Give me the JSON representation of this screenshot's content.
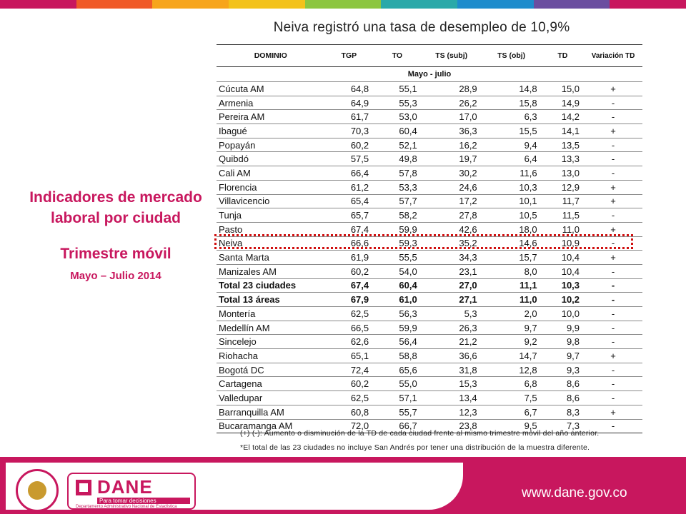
{
  "headline": "Neiva  registró una tasa  de desempleo de 10,9%",
  "side": {
    "title_line1": "Indicadores de mercado",
    "title_line2": "laboral por ciudad",
    "subtitle": "Trimestre móvil",
    "period": "Mayo – Julio 2014"
  },
  "table": {
    "headers": [
      "DOMINIO",
      "TGP",
      "TO",
      "TS (subj)",
      "TS (obj)",
      "TD",
      "Variación TD"
    ],
    "period_label": "Mayo - julio",
    "rows": [
      [
        "Cúcuta AM",
        "64,8",
        "55,1",
        "28,9",
        "14,8",
        "15,0",
        "+"
      ],
      [
        "Armenia",
        "64,9",
        "55,3",
        "26,2",
        "15,8",
        "14,9",
        "-"
      ],
      [
        "Pereira AM",
        "61,7",
        "53,0",
        "17,0",
        "6,3",
        "14,2",
        "-"
      ],
      [
        "Ibagué",
        "70,3",
        "60,4",
        "36,3",
        "15,5",
        "14,1",
        "+"
      ],
      [
        "Popayán",
        "60,2",
        "52,1",
        "16,2",
        "9,4",
        "13,5",
        "-"
      ],
      [
        "Quibdó",
        "57,5",
        "49,8",
        "19,7",
        "6,4",
        "13,3",
        "-"
      ],
      [
        "Cali AM",
        "66,4",
        "57,8",
        "30,2",
        "11,6",
        "13,0",
        "-"
      ],
      [
        "Florencia",
        "61,2",
        "53,3",
        "24,6",
        "10,3",
        "12,9",
        "+"
      ],
      [
        "Villavicencio",
        "65,4",
        "57,7",
        "17,2",
        "10,1",
        "11,7",
        "+"
      ],
      [
        "Tunja",
        "65,7",
        "58,2",
        "27,8",
        "10,5",
        "11,5",
        "-"
      ],
      [
        "Pasto",
        "67,4",
        "59,9",
        "42,6",
        "18,0",
        "11,0",
        "+"
      ],
      [
        "Neiva",
        "66,6",
        "59,3",
        "35,2",
        "14,6",
        "10,9",
        "-"
      ],
      [
        "Santa Marta",
        "61,9",
        "55,5",
        "34,3",
        "15,7",
        "10,4",
        "+"
      ],
      [
        "Manizales AM",
        "60,2",
        "54,0",
        "23,1",
        "8,0",
        "10,4",
        "-"
      ],
      [
        "Total 23 ciudades",
        "67,4",
        "60,4",
        "27,0",
        "11,1",
        "10,3",
        "-"
      ],
      [
        "Total 13 áreas",
        "67,9",
        "61,0",
        "27,1",
        "11,0",
        "10,2",
        "-"
      ],
      [
        "Montería",
        "62,5",
        "56,3",
        "5,3",
        "2,0",
        "10,0",
        "-"
      ],
      [
        "Medellín AM",
        "66,5",
        "59,9",
        "26,3",
        "9,7",
        "9,9",
        "-"
      ],
      [
        "Sincelejo",
        "62,6",
        "56,4",
        "21,2",
        "9,2",
        "9,8",
        "-"
      ],
      [
        "Riohacha",
        "65,1",
        "58,8",
        "36,6",
        "14,7",
        "9,7",
        "+"
      ],
      [
        "Bogotá DC",
        "72,4",
        "65,6",
        "31,8",
        "12,8",
        "9,3",
        "-"
      ],
      [
        "Cartagena",
        "60,2",
        "55,0",
        "15,3",
        "6,8",
        "8,6",
        "-"
      ],
      [
        "Valledupar",
        "62,5",
        "57,1",
        "13,4",
        "7,5",
        "8,6",
        "-"
      ],
      [
        "Barranquilla AM",
        "60,8",
        "55,7",
        "12,3",
        "6,7",
        "8,3",
        "+"
      ],
      [
        "Bucaramanga AM",
        "72,0",
        "66,7",
        "23,8",
        "9,5",
        "7,3",
        "-"
      ]
    ]
  },
  "notes": {
    "note1": "(+) (-): Aumento o disminución de la TD de cada ciudad frente al mismo trimestre móvil del año anterior.",
    "note2": "*El total de las 23 ciudades no incluye San Andrés por tener una distribución de la muestra diferente."
  },
  "footer": {
    "logo_name": "DANE",
    "logo_tagline": "Para tomar decisiones",
    "logo_department": "Departamento Administrativo Nacional de Estadística",
    "url": "www.dane.gov.co"
  },
  "highlight_row": "Neiva",
  "bold_rows": [
    "Total 23 ciudades",
    "Total 13 áreas"
  ],
  "colors": {
    "brand": "#c8175e",
    "highlight": "#d01010"
  }
}
